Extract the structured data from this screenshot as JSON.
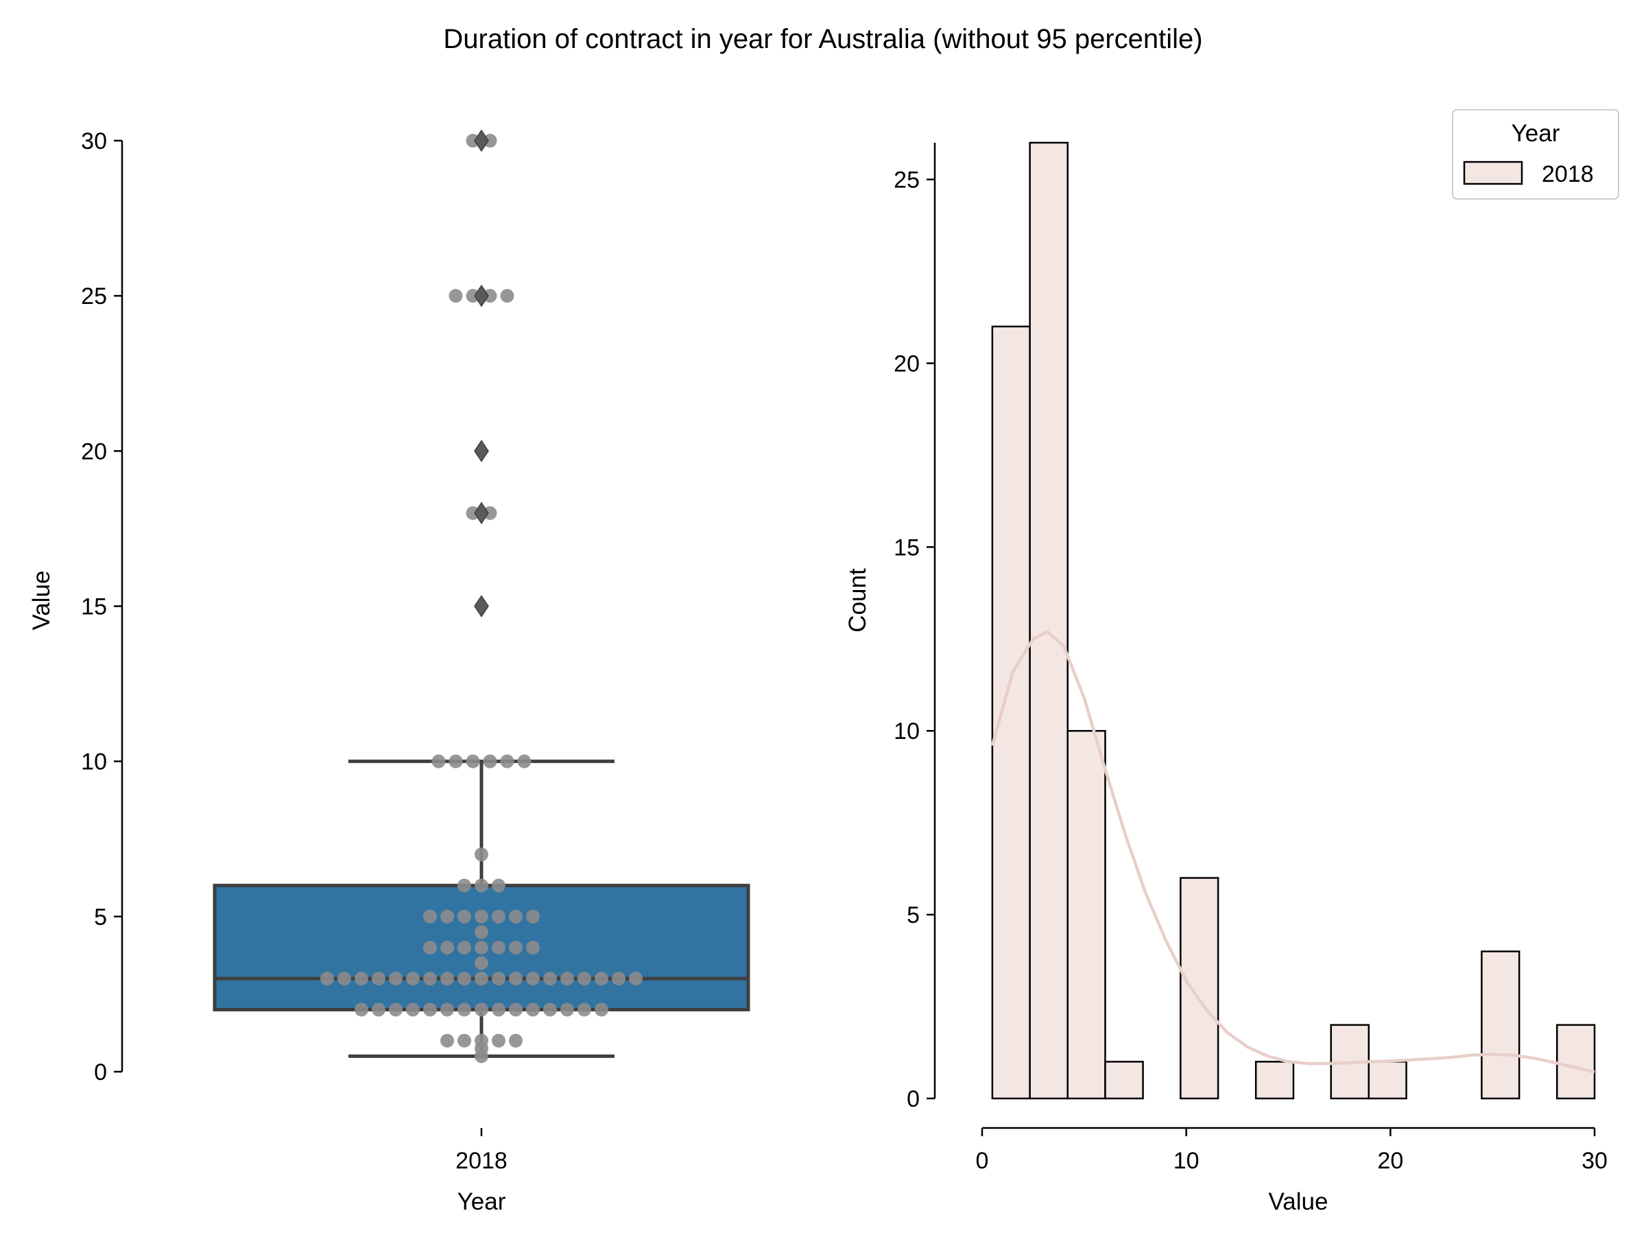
{
  "chart_data": {
    "title": "Duration of contract in year for Australia (without 95 percentile)",
    "colors": {
      "box_fill": "#3274a1",
      "box_edge": "#3f3f3f",
      "swarm_point": "#8c8c8c",
      "flier": "#5a5a5a",
      "hist_fill": "#f4e6e3",
      "hist_edge": "#000000",
      "kde_line": "#e8cfc9"
    },
    "panels": [
      {
        "type": "box",
        "xlabel": "Year",
        "ylabel": "Value",
        "categories": [
          "2018"
        ],
        "ylim": [
          0,
          30
        ],
        "yticks": [
          0,
          5,
          10,
          15,
          20,
          25,
          30
        ],
        "box": {
          "whisker_low": 0.5,
          "q1": 2,
          "median": 3,
          "q3": 6,
          "whisker_high": 10
        },
        "fliers": [
          15,
          18,
          20,
          25,
          30
        ],
        "swarm": [
          {
            "value": 0.5,
            "count": 1
          },
          {
            "value": 0.75,
            "count": 1
          },
          {
            "value": 1,
            "count": 5
          },
          {
            "value": 2,
            "count": 15
          },
          {
            "value": 3,
            "count": 19
          },
          {
            "value": 3.5,
            "count": 1
          },
          {
            "value": 4,
            "count": 7
          },
          {
            "value": 4.5,
            "count": 1
          },
          {
            "value": 5,
            "count": 7
          },
          {
            "value": 6,
            "count": 3
          },
          {
            "value": 7,
            "count": 1
          },
          {
            "value": 10,
            "count": 6
          },
          {
            "value": 18,
            "count": 2
          },
          {
            "value": 25,
            "count": 4
          },
          {
            "value": 30,
            "count": 2
          }
        ]
      },
      {
        "type": "bar",
        "subtype": "histogram_with_kde",
        "xlabel": "Value",
        "ylabel": "Count",
        "xlim": [
          0,
          30
        ],
        "ylim": [
          0,
          26
        ],
        "xticks": [
          0,
          10,
          20,
          30
        ],
        "yticks": [
          0,
          5,
          10,
          15,
          20,
          25
        ],
        "bin_edges": [
          0.5,
          2.34,
          4.19,
          6.03,
          7.88,
          9.72,
          11.56,
          13.41,
          15.25,
          17.09,
          18.94,
          20.78,
          22.63,
          24.47,
          26.31,
          28.16,
          30.0
        ],
        "counts": [
          21,
          26,
          10,
          1,
          0,
          6,
          0,
          1,
          0,
          2,
          1,
          0,
          0,
          4,
          0,
          2
        ],
        "kde": {
          "x": [
            0.5,
            1.5,
            2.5,
            3.2,
            4,
            5,
            6,
            7,
            8,
            9,
            10,
            11,
            12,
            13,
            14,
            15,
            16,
            17,
            18,
            19,
            20,
            21,
            22,
            23,
            24,
            25,
            26,
            27,
            28,
            29,
            30
          ],
          "y": [
            9.6,
            11.6,
            12.5,
            12.7,
            12.3,
            10.9,
            9.0,
            7.2,
            5.6,
            4.3,
            3.2,
            2.4,
            1.8,
            1.4,
            1.15,
            1.0,
            0.95,
            0.95,
            0.97,
            1.0,
            1.02,
            1.05,
            1.08,
            1.12,
            1.18,
            1.2,
            1.18,
            1.1,
            0.98,
            0.85,
            0.72
          ]
        },
        "legend": {
          "title": "Year",
          "entries": [
            "2018"
          ],
          "placement": "top-right"
        }
      }
    ]
  }
}
